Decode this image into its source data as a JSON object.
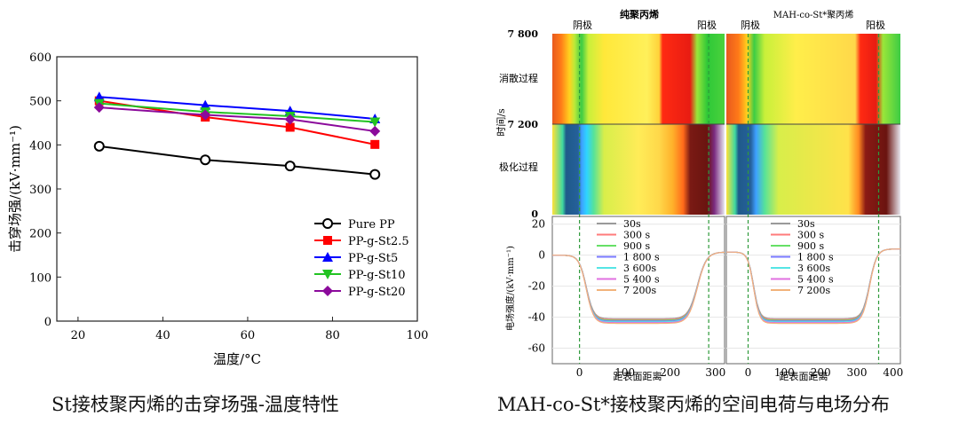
{
  "captions": {
    "left": "St接枝聚丙烯的击穿场强-温度特性",
    "right": "MAH-co-St*接枝聚丙烯的空间电荷与电场分布"
  },
  "chart_data": [
    {
      "type": "line",
      "xlabel": "温度/°C",
      "ylabel": "击穿场强/(kV·mm⁻¹)",
      "xlim": [
        15,
        100
      ],
      "ylim": [
        0,
        600
      ],
      "xticks": [
        20,
        40,
        60,
        80,
        100
      ],
      "yticks": [
        0,
        100,
        200,
        300,
        400,
        500,
        600
      ],
      "grid": false,
      "legend": "bottom-right",
      "x": [
        25,
        50,
        70,
        90
      ],
      "series": [
        {
          "name": "Pure PP",
          "color": "#000000",
          "marker": "circle",
          "values": [
            397,
            366,
            352,
            333
          ]
        },
        {
          "name": "PP-g-St2.5",
          "color": "#ff0000",
          "marker": "square",
          "values": [
            500,
            463,
            440,
            401
          ]
        },
        {
          "name": "PP-g-St5",
          "color": "#0000ff",
          "marker": "triangle",
          "values": [
            509,
            490,
            477,
            459
          ]
        },
        {
          "name": "PP-g-St10",
          "color": "#22c322",
          "marker": "tri-down",
          "values": [
            494,
            475,
            465,
            452
          ]
        },
        {
          "name": "PP-g-St20",
          "color": "#8b0a9b",
          "marker": "diamond",
          "values": [
            485,
            468,
            458,
            431
          ]
        }
      ]
    },
    {
      "type": "heatmap",
      "panels": [
        {
          "title": "纯聚丙烯",
          "cathode_label": "阴极",
          "anode_label": "阳极"
        },
        {
          "title": "MAH-co-St*聚丙烯",
          "cathode_label": "阴极",
          "anode_label": "阳极"
        }
      ],
      "ylabel": "时间/s",
      "yticks": [
        "7 800",
        "7 200",
        "0"
      ],
      "phase_labels": [
        "消散过程",
        "极化过程"
      ]
    },
    {
      "type": "line",
      "xlabel": "距表面距离",
      "ylabel": "电场强度/(kV·mm⁻¹)",
      "ylim": [
        -70,
        25
      ],
      "yticks": [
        20,
        0,
        -20,
        -40,
        -60
      ],
      "panels": [
        {
          "xlim": [
            -60,
            320
          ],
          "xticks": [
            0,
            100,
            200,
            300
          ],
          "electrodes": [
            0,
            285
          ],
          "xlabel": "距表面距离"
        },
        {
          "xlim": [
            -60,
            420
          ],
          "xticks": [
            0,
            100,
            200,
            300,
            400
          ],
          "electrodes": [
            0,
            360
          ],
          "xlabel": "距表面距离"
        }
      ],
      "legend": "top-left",
      "series": [
        {
          "name": "30s",
          "color": "#9a9a9a"
        },
        {
          "name": "300 s",
          "color": "#ff7b7b"
        },
        {
          "name": "900 s",
          "color": "#66e066"
        },
        {
          "name": "1 800 s",
          "color": "#7a7aff"
        },
        {
          "name": "3 600s",
          "color": "#55e5e5"
        },
        {
          "name": "5 400 s",
          "color": "#e070e0"
        },
        {
          "name": "7 200s",
          "color": "#f2b27a"
        }
      ]
    }
  ]
}
